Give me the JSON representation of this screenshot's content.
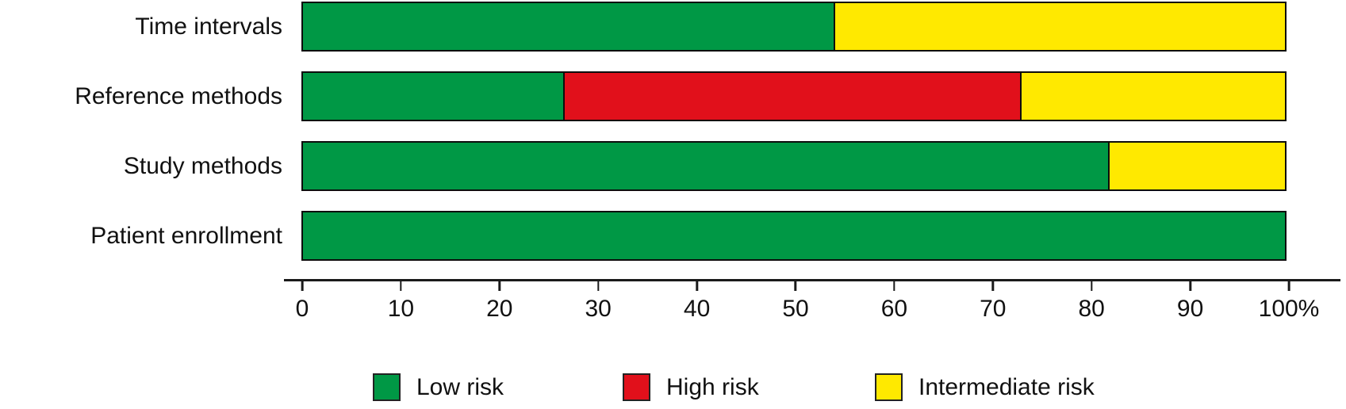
{
  "chart_data": {
    "type": "bar",
    "orientation": "horizontal",
    "stacked": true,
    "title": "",
    "xlabel": "",
    "ylabel": "",
    "xlim": [
      0,
      100
    ],
    "x_ticks": [
      "0",
      "10",
      "20",
      "30",
      "40",
      "50",
      "60",
      "70",
      "80",
      "90",
      "100%"
    ],
    "grid": false,
    "legend_position": "bottom",
    "categories": [
      "Time intervals",
      "Reference methods",
      "Study methods",
      "Patient enrollment"
    ],
    "series": [
      {
        "name": "Low risk",
        "color": "#009845",
        "values": [
          54,
          26.5,
          82,
          100
        ]
      },
      {
        "name": "High risk",
        "color": "#e1101b",
        "values": [
          0,
          46.5,
          0,
          0
        ]
      },
      {
        "name": "Intermediate risk",
        "color": "#ffe900",
        "values": [
          46,
          27,
          18,
          0
        ]
      }
    ]
  },
  "legend": {
    "items": [
      {
        "label": "Low risk",
        "color": "#009845"
      },
      {
        "label": "High risk",
        "color": "#e1101b"
      },
      {
        "label": "Intermediate risk",
        "color": "#ffe900"
      }
    ]
  }
}
